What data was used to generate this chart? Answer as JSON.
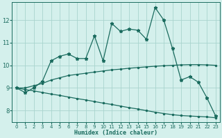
{
  "xlabel": "Humidex (Indice chaleur)",
  "background_color": "#d4f0ec",
  "grid_color": "#a8d4ce",
  "line_color": "#1a6b5e",
  "x_values": [
    0,
    1,
    2,
    3,
    4,
    5,
    6,
    7,
    8,
    9,
    10,
    11,
    12,
    13,
    14,
    15,
    16,
    17,
    18,
    19,
    20,
    21,
    22,
    23
  ],
  "y_main": [
    9.0,
    8.8,
    9.0,
    9.3,
    10.2,
    10.4,
    10.5,
    10.3,
    10.3,
    11.3,
    10.2,
    11.85,
    11.5,
    11.6,
    11.55,
    11.15,
    12.55,
    12.0,
    10.75,
    9.35,
    9.5,
    9.25,
    8.55,
    7.75
  ],
  "y_upper": [
    9.0,
    9.0,
    9.1,
    9.2,
    9.35,
    9.45,
    9.55,
    9.6,
    9.65,
    9.7,
    9.75,
    9.8,
    9.83,
    9.87,
    9.9,
    9.93,
    9.96,
    9.98,
    10.0,
    10.02,
    10.03,
    10.03,
    10.02,
    10.0
  ],
  "y_lower": [
    9.0,
    8.93,
    8.87,
    8.8,
    8.73,
    8.67,
    8.6,
    8.53,
    8.47,
    8.4,
    8.33,
    8.27,
    8.2,
    8.13,
    8.07,
    8.0,
    7.93,
    7.87,
    7.82,
    7.78,
    7.76,
    7.74,
    7.72,
    7.68
  ],
  "ylim": [
    7.5,
    12.8
  ],
  "yticks": [
    8,
    9,
    10,
    11,
    12
  ],
  "xticks": [
    0,
    1,
    2,
    3,
    4,
    5,
    6,
    7,
    8,
    9,
    10,
    11,
    12,
    13,
    14,
    15,
    16,
    17,
    18,
    19,
    20,
    21,
    22,
    23
  ]
}
